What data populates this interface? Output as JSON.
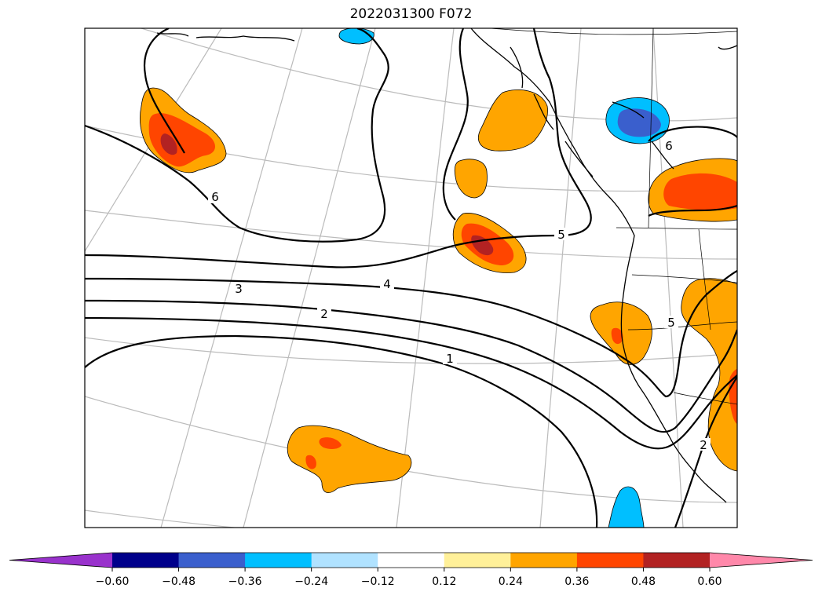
{
  "title": "2022031300 F072",
  "contour_labels": [
    "6",
    "5",
    "4",
    "3",
    "2",
    "1",
    "6",
    "5",
    "2"
  ],
  "colorbar": {
    "colors": [
      "#9932cc",
      "#00008b",
      "#3a5fcd",
      "#00bfff",
      "#b0e2ff",
      "#ffffff",
      "#fff099",
      "#ffa500",
      "#ff4500",
      "#b22222",
      "#ff88aa"
    ],
    "ticks": [
      "−0.60",
      "−0.48",
      "−0.36",
      "−0.24",
      "−0.12",
      "0.12",
      "0.24",
      "0.36",
      "0.48",
      "0.60"
    ]
  }
}
